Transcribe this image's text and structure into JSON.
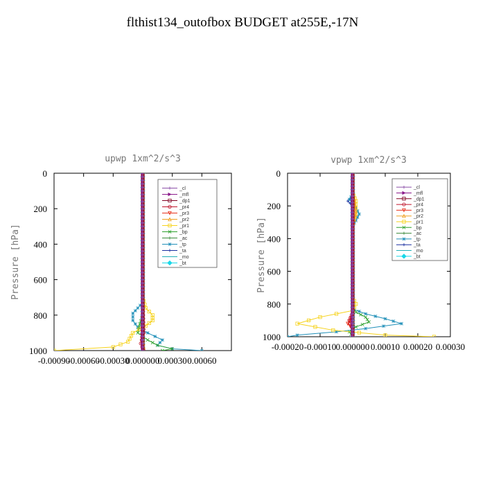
{
  "page_title": "flthist134_outofbox  BUDGET at255E,-17N",
  "chart_data": [
    {
      "type": "line",
      "title": "upwp  1xm^2/s^3",
      "ylabel": "Pressure [hPa]",
      "xlabel": "",
      "xlim": [
        -0.0009,
        0.0009
      ],
      "ylim": [
        1000,
        0
      ],
      "x_tick_labels": [
        "-0.00090",
        "-0.00060",
        "-0.00030",
        "0.000000",
        "0.00030",
        "0.00060"
      ],
      "y_tick_labels": [
        "0",
        "200",
        "400",
        "600",
        "800",
        "1000"
      ],
      "grid": false,
      "legend_placement": "top-right",
      "series": [
        {
          "name": "_cl",
          "color": "#8b4fa8",
          "marker": "+",
          "points": [
            [
              0,
              0
            ],
            [
              0,
              200
            ],
            [
              0,
              400
            ],
            [
              0,
              600
            ],
            [
              0,
              800
            ],
            [
              0,
              1000
            ]
          ]
        },
        {
          "name": "_mfl",
          "color": "#8b1a8b",
          "marker": ">",
          "points": [
            [
              0,
              0
            ],
            [
              0,
              200
            ],
            [
              0,
              400
            ],
            [
              0,
              600
            ],
            [
              0,
              800
            ],
            [
              0,
              1000
            ]
          ]
        },
        {
          "name": "_dp1",
          "color": "#800020",
          "marker": "s",
          "points": [
            [
              0,
              0
            ],
            [
              0,
              200
            ],
            [
              0,
              400
            ],
            [
              0,
              600
            ],
            [
              0,
              800
            ],
            [
              0,
              900
            ],
            [
              0,
              1000
            ]
          ]
        },
        {
          "name": "_pr4",
          "color": "#c0142b",
          "marker": "o",
          "points": [
            [
              0,
              0
            ],
            [
              0,
              700
            ],
            [
              1e-05,
              900
            ],
            [
              -2e-05,
              960
            ],
            [
              1e-05,
              1000
            ]
          ]
        },
        {
          "name": "_pr3",
          "color": "#e8301a",
          "marker": "v",
          "points": [
            [
              0,
              0
            ],
            [
              0,
              800
            ],
            [
              -1e-05,
              950
            ],
            [
              0,
              1000
            ]
          ]
        },
        {
          "name": "_pr2",
          "color": "#f0a020",
          "marker": "^",
          "points": [
            [
              0,
              0
            ],
            [
              0,
              900
            ],
            [
              1e-05,
              980
            ],
            [
              0,
              1000
            ]
          ]
        },
        {
          "name": "_pr1",
          "color": "#f6d21a",
          "marker": "s",
          "points": [
            [
              0,
              0
            ],
            [
              0,
              700
            ],
            [
              3e-05,
              760
            ],
            [
              0.0001,
              800
            ],
            [
              0.0001,
              830
            ],
            [
              3e-05,
              860
            ],
            [
              -0.0001,
              900
            ],
            [
              -0.00015,
              950
            ],
            [
              -0.0003,
              980
            ],
            [
              -0.0009,
              1000
            ]
          ]
        },
        {
          "name": "_bp",
          "color": "#2ca02c",
          "marker": "x",
          "points": [
            [
              0,
              0
            ],
            [
              0,
              800
            ],
            [
              -3e-05,
              850
            ],
            [
              -5e-05,
              900
            ],
            [
              5e-05,
              940
            ],
            [
              0.00015,
              970
            ],
            [
              0.0003,
              990
            ],
            [
              0.0002,
              1000
            ]
          ]
        },
        {
          "name": "_ac",
          "color": "#3a8a3a",
          "marker": "+",
          "points": [
            [
              0,
              0
            ],
            [
              0,
              900
            ],
            [
              1e-05,
              950
            ],
            [
              0,
              1000
            ]
          ]
        },
        {
          "name": "_tp",
          "color": "#1f8fb8",
          "marker": "*",
          "points": [
            [
              0,
              0
            ],
            [
              0,
              730
            ],
            [
              -5e-05,
              760
            ],
            [
              -0.0001,
              790
            ],
            [
              -0.0001,
              830
            ],
            [
              -5e-05,
              870
            ],
            [
              5e-05,
              900
            ],
            [
              0.0002,
              940
            ],
            [
              0.00015,
              970
            ],
            [
              0.0003,
              990
            ],
            [
              0.0006,
              1000
            ]
          ]
        },
        {
          "name": "_ta",
          "color": "#1a2fa0",
          "marker": "+",
          "points": [
            [
              0,
              0
            ],
            [
              0,
              900
            ],
            [
              -1e-05,
              960
            ],
            [
              0,
              1000
            ]
          ]
        },
        {
          "name": "_mo",
          "color": "#20b0b8",
          "marker": "-",
          "points": [
            [
              0,
              0
            ],
            [
              0,
              1000
            ]
          ]
        },
        {
          "name": "_bt",
          "color": "#18d8e8",
          "marker": "D",
          "points": [
            [
              0,
              0
            ],
            [
              0,
              1000
            ]
          ]
        }
      ]
    },
    {
      "type": "line",
      "title": "vpwp  1xm^2/s^3",
      "ylabel": "Pressure [hPa]",
      "xlabel": "",
      "xlim": [
        -0.0002,
        0.0003
      ],
      "ylim": [
        1000,
        0
      ],
      "x_tick_labels": [
        "-0.00020",
        "-0.00010",
        "0.000000",
        "0.00010",
        "0.00020",
        "0.00030"
      ],
      "y_tick_labels": [
        "0",
        "200",
        "400",
        "600",
        "800",
        "1000"
      ],
      "grid": false,
      "legend_placement": "top-right",
      "series": [
        {
          "name": "_cl",
          "color": "#8b4fa8",
          "marker": "+",
          "points": [
            [
              0,
              0
            ],
            [
              0,
              200
            ],
            [
              0,
              400
            ],
            [
              0,
              600
            ],
            [
              0,
              800
            ],
            [
              0,
              1000
            ]
          ]
        },
        {
          "name": "_mfl",
          "color": "#8b1a8b",
          "marker": ">",
          "points": [
            [
              0,
              0
            ],
            [
              0,
              200
            ],
            [
              0,
              400
            ],
            [
              0,
              600
            ],
            [
              0,
              800
            ],
            [
              0,
              1000
            ]
          ]
        },
        {
          "name": "_dp1",
          "color": "#800020",
          "marker": "s",
          "points": [
            [
              0,
              0
            ],
            [
              0,
              400
            ],
            [
              0,
              800
            ],
            [
              0,
              1000
            ]
          ]
        },
        {
          "name": "_pr4",
          "color": "#c0142b",
          "marker": "o",
          "points": [
            [
              0,
              0
            ],
            [
              0,
              850
            ],
            [
              -1e-05,
              900
            ],
            [
              0,
              960
            ],
            [
              0,
              1000
            ]
          ]
        },
        {
          "name": "_pr3",
          "color": "#e8301a",
          "marker": "v",
          "points": [
            [
              0,
              0
            ],
            [
              0,
              870
            ],
            [
              -1.5e-05,
              920
            ],
            [
              0,
              950
            ],
            [
              0,
              1000
            ]
          ]
        },
        {
          "name": "_pr2",
          "color": "#f0a020",
          "marker": "^",
          "points": [
            [
              0,
              0
            ],
            [
              0,
              120
            ],
            [
              5e-06,
              160
            ],
            [
              1e-05,
              250
            ],
            [
              0,
              320
            ],
            [
              0,
              1000
            ]
          ]
        },
        {
          "name": "_pr1",
          "color": "#f6d21a",
          "marker": "s",
          "points": [
            [
              0,
              0
            ],
            [
              0,
              120
            ],
            [
              1e-05,
              170
            ],
            [
              8e-06,
              250
            ],
            [
              0,
              300
            ],
            [
              0,
              760
            ],
            [
              1e-05,
              800
            ],
            [
              0,
              840
            ],
            [
              -0.0001,
              880
            ],
            [
              -0.00017,
              920
            ],
            [
              -6e-05,
              960
            ],
            [
              0.0001,
              990
            ],
            [
              0.00025,
              1000
            ]
          ]
        },
        {
          "name": "_bp",
          "color": "#2ca02c",
          "marker": "x",
          "points": [
            [
              0,
              0
            ],
            [
              0,
              820
            ],
            [
              1e-05,
              850
            ],
            [
              4e-05,
              880
            ],
            [
              5e-05,
              910
            ],
            [
              1e-05,
              940
            ],
            [
              -1e-05,
              970
            ],
            [
              0,
              1000
            ]
          ]
        },
        {
          "name": "_ac",
          "color": "#3a8a3a",
          "marker": "+",
          "points": [
            [
              0,
              0
            ],
            [
              0,
              1000
            ]
          ]
        },
        {
          "name": "_tp",
          "color": "#1f8fb8",
          "marker": "*",
          "points": [
            [
              0,
              0
            ],
            [
              0,
              130
            ],
            [
              -1e-05,
              160
            ],
            [
              1e-05,
              210
            ],
            [
              2e-05,
              250
            ],
            [
              1e-05,
              290
            ],
            [
              0,
              320
            ],
            [
              0,
              830
            ],
            [
              4e-05,
              860
            ],
            [
              0.0001,
              890
            ],
            [
              0.00015,
              920
            ],
            [
              4e-05,
              950
            ],
            [
              -5e-05,
              970
            ],
            [
              -0.00017,
              990
            ],
            [
              -0.0002,
              1000
            ]
          ]
        },
        {
          "name": "_ta",
          "color": "#1a2fa0",
          "marker": "+",
          "points": [
            [
              0,
              0
            ],
            [
              0,
              140
            ],
            [
              -1.5e-05,
              170
            ],
            [
              0,
              200
            ],
            [
              0,
              1000
            ]
          ]
        },
        {
          "name": "_mo",
          "color": "#20b0b8",
          "marker": "-",
          "points": [
            [
              0,
              0
            ],
            [
              0,
              1000
            ]
          ]
        },
        {
          "name": "_bt",
          "color": "#18d8e8",
          "marker": "D",
          "points": [
            [
              0,
              0
            ],
            [
              0,
              1000
            ]
          ]
        }
      ]
    }
  ]
}
